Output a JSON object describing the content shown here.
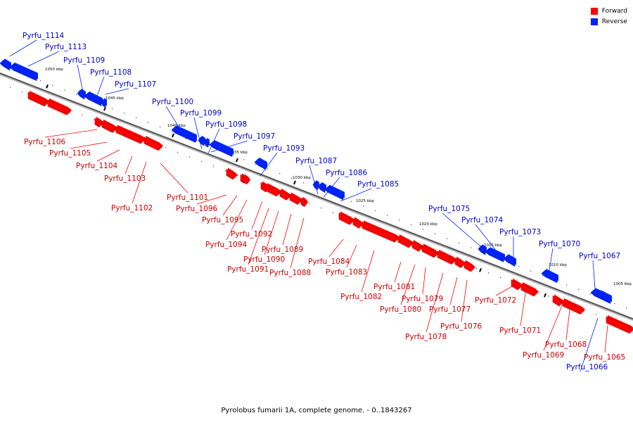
{
  "caption": "Pyrolobus fumarii 1A, complete genome. - 0..1843267",
  "legend": {
    "forward_label": "Forward",
    "reverse_label": "Reverse",
    "forward_color": "#ff0000",
    "reverse_color": "#0022ff"
  },
  "colors": {
    "forward_label": "#cc0000",
    "reverse_label": "#0000cc",
    "backbone": "#888888",
    "tick": "#000000"
  },
  "scale_labels": [
    "1050 kbp",
    "1045 kbp",
    "1040 kbp",
    "1035 kbp",
    "1030 kbp",
    "1025 kbp",
    "1020 kbp",
    "1015 kbp",
    "1010 kbp",
    "1005 kbp"
  ],
  "genes": [
    {
      "name": "Pyrfu_1114",
      "strand": "reverse"
    },
    {
      "name": "Pyrfu_1113",
      "strand": "reverse"
    },
    {
      "name": "Pyrfu_1109",
      "strand": "reverse"
    },
    {
      "name": "Pyrfu_1108",
      "strand": "reverse"
    },
    {
      "name": "Pyrfu_1107",
      "strand": "reverse"
    },
    {
      "name": "Pyrfu_1106",
      "strand": "forward"
    },
    {
      "name": "Pyrfu_1105",
      "strand": "forward"
    },
    {
      "name": "Pyrfu_1104",
      "strand": "forward"
    },
    {
      "name": "Pyrfu_1103",
      "strand": "forward"
    },
    {
      "name": "Pyrfu_1102",
      "strand": "forward"
    },
    {
      "name": "Pyrfu_1101",
      "strand": "forward"
    },
    {
      "name": "Pyrfu_1100",
      "strand": "reverse"
    },
    {
      "name": "Pyrfu_1099",
      "strand": "reverse"
    },
    {
      "name": "Pyrfu_1098",
      "strand": "reverse"
    },
    {
      "name": "Pyrfu_1097",
      "strand": "reverse"
    },
    {
      "name": "Pyrfu_1096",
      "strand": "forward"
    },
    {
      "name": "Pyrfu_1095",
      "strand": "forward"
    },
    {
      "name": "Pyrfu_1094",
      "strand": "forward"
    },
    {
      "name": "Pyrfu_1093",
      "strand": "reverse"
    },
    {
      "name": "Pyrfu_1092",
      "strand": "forward"
    },
    {
      "name": "Pyrfu_1091",
      "strand": "forward"
    },
    {
      "name": "Pyrfu_1090",
      "strand": "forward"
    },
    {
      "name": "Pyrfu_1089",
      "strand": "forward"
    },
    {
      "name": "Pyrfu_1088",
      "strand": "forward"
    },
    {
      "name": "Pyrfu_1087",
      "strand": "reverse"
    },
    {
      "name": "Pyrfu_1086",
      "strand": "reverse"
    },
    {
      "name": "Pyrfu_1085",
      "strand": "reverse"
    },
    {
      "name": "Pyrfu_1084",
      "strand": "forward"
    },
    {
      "name": "Pyrfu_1083",
      "strand": "forward"
    },
    {
      "name": "Pyrfu_1082",
      "strand": "forward"
    },
    {
      "name": "Pyrfu_1081",
      "strand": "forward"
    },
    {
      "name": "Pyrfu_1080",
      "strand": "forward"
    },
    {
      "name": "Pyrfu_1079",
      "strand": "forward"
    },
    {
      "name": "Pyrfu_1078",
      "strand": "forward"
    },
    {
      "name": "Pyrfu_1077",
      "strand": "forward"
    },
    {
      "name": "Pyrfu_1076",
      "strand": "forward"
    },
    {
      "name": "Pyrfu_1075",
      "strand": "reverse"
    },
    {
      "name": "Pyrfu_1074",
      "strand": "reverse"
    },
    {
      "name": "Pyrfu_1073",
      "strand": "reverse"
    },
    {
      "name": "Pyrfu_1072",
      "strand": "forward"
    },
    {
      "name": "Pyrfu_1071",
      "strand": "forward"
    },
    {
      "name": "Pyrfu_1070",
      "strand": "reverse"
    },
    {
      "name": "Pyrfu_1069",
      "strand": "forward"
    },
    {
      "name": "Pyrfu_1068",
      "strand": "forward"
    },
    {
      "name": "Pyrfu_1067",
      "strand": "reverse"
    },
    {
      "name": "Pyrfu_1066",
      "strand": "reverse"
    },
    {
      "name": "Pyrfu_1065",
      "strand": "forward"
    }
  ]
}
